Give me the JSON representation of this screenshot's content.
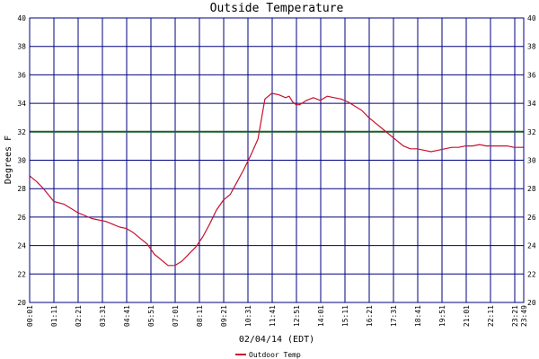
{
  "chart_data": {
    "type": "line",
    "title": "Outside Temperature",
    "xlabel": "02/04/14 (EDT)",
    "ylabel": "Degrees F",
    "ylim": [
      20,
      40
    ],
    "yticks": [
      "20",
      "22",
      "24",
      "26",
      "28",
      "30",
      "32",
      "34",
      "36",
      "38",
      "40"
    ],
    "xticks": [
      "00:01",
      "01:11",
      "02:21",
      "03:31",
      "04:41",
      "05:51",
      "07:01",
      "08:11",
      "09:21",
      "10:31",
      "11:41",
      "12:51",
      "14:01",
      "15:11",
      "16:21",
      "17:31",
      "18:41",
      "19:51",
      "21:01",
      "22:11",
      "23:21",
      "23:49"
    ],
    "grid": true,
    "legend_position": "bottom-left",
    "reference_line": {
      "value": 32,
      "color": "#1a5e28"
    },
    "series": [
      {
        "name": "Outdoor Temp",
        "color": "#c8102e",
        "x": [
          0,
          20,
          40,
          60,
          70,
          100,
          140,
          180,
          220,
          240,
          260,
          280,
          300,
          320,
          340,
          360,
          400,
          420,
          440,
          460,
          480,
          500,
          520,
          540,
          560,
          580,
          600,
          620,
          640,
          660,
          680,
          700,
          720,
          740,
          750,
          760,
          770,
          780,
          800,
          820,
          840,
          860,
          880,
          900,
          920,
          940,
          960,
          980,
          1000,
          1020,
          1040,
          1060,
          1080,
          1100,
          1120,
          1140,
          1160,
          1180,
          1200,
          1220,
          1240,
          1260,
          1280,
          1300,
          1320,
          1340,
          1360,
          1380,
          1400,
          1428
        ],
        "values": [
          28.9,
          28.5,
          28.0,
          27.4,
          27.1,
          26.9,
          26.3,
          25.9,
          25.7,
          25.5,
          25.3,
          25.2,
          24.9,
          24.5,
          24.1,
          23.4,
          22.6,
          22.6,
          22.9,
          23.4,
          23.9,
          24.6,
          25.5,
          26.5,
          27.2,
          27.6,
          28.5,
          29.4,
          30.4,
          31.5,
          34.3,
          34.7,
          34.6,
          34.4,
          34.5,
          34.1,
          33.9,
          33.9,
          34.2,
          34.4,
          34.2,
          34.5,
          34.4,
          34.3,
          34.1,
          33.8,
          33.5,
          33.0,
          32.6,
          32.2,
          31.8,
          31.4,
          31.0,
          30.8,
          30.8,
          30.7,
          30.6,
          30.7,
          30.8,
          30.9,
          30.9,
          31.0,
          31.0,
          31.1,
          31.0,
          31.0,
          31.0,
          31.0,
          30.9,
          30.9
        ]
      }
    ]
  }
}
